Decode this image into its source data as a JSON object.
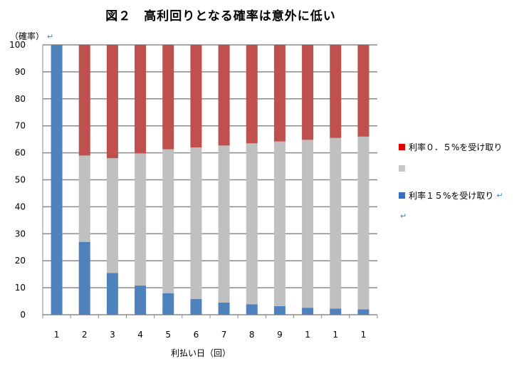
{
  "chart_data": {
    "type": "bar",
    "stacked": true,
    "title": "図２　高利回りとなる確率は意外に低い",
    "ylabel": "（確率）",
    "xlabel": "利払い日（回）",
    "ylim": [
      0,
      100
    ],
    "yticks": [
      0,
      10,
      20,
      30,
      40,
      50,
      60,
      70,
      80,
      90,
      100
    ],
    "categories": [
      "1",
      "2",
      "3",
      "4",
      "5",
      "6",
      "7",
      "8",
      "9",
      "1",
      "1",
      "1"
    ],
    "grid": true,
    "legend_position": "right",
    "series": [
      {
        "name": "利率１５%を受け取り",
        "color": "#4f81bd",
        "values": [
          100,
          27,
          15.5,
          10.8,
          8,
          5.8,
          4.5,
          3.9,
          3.2,
          2.6,
          2.3,
          2
        ]
      },
      {
        "name": "",
        "color": "#c0c0c0",
        "values": [
          0,
          32,
          42.5,
          49,
          53.3,
          56.2,
          58.2,
          59.6,
          61,
          62.2,
          63.2,
          64
        ]
      },
      {
        "name": "利率０．５%を受け取り",
        "color": "#c0504d",
        "values": [
          0,
          41,
          42,
          40.2,
          38.7,
          38,
          37.3,
          36.5,
          35.8,
          35.2,
          34.5,
          34
        ]
      }
    ]
  },
  "legend": {
    "red_label": "利率０．５%を受け取り",
    "red_color": "#e00000",
    "gray_color": "#c8c8c8",
    "blue_label": "利率１５%を受け取り",
    "blue_color": "#3a6fbf",
    "return_symbol": "↵"
  }
}
